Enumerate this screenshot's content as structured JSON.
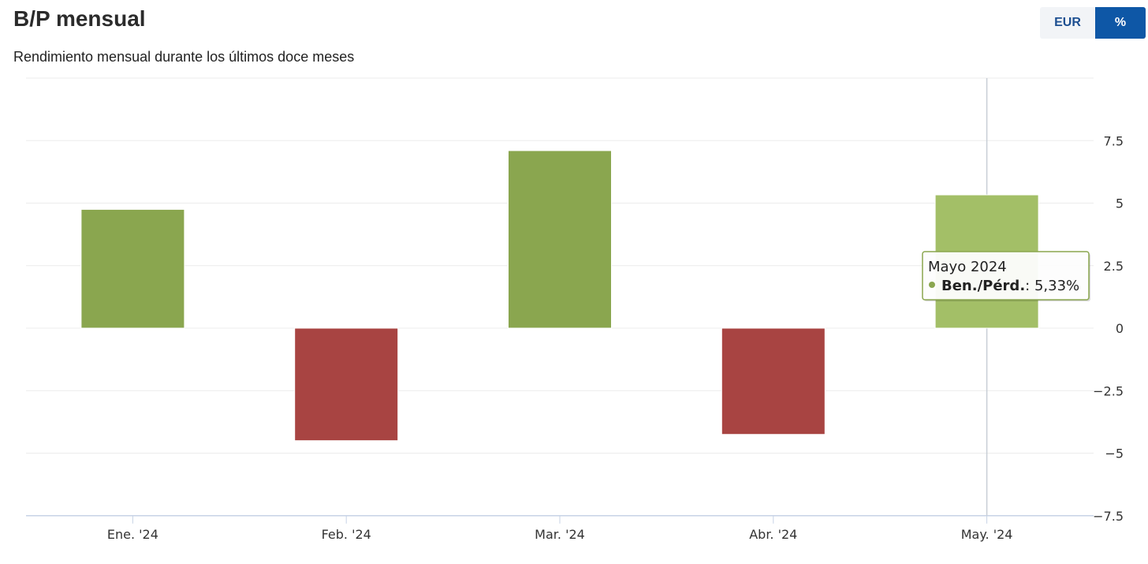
{
  "header": {
    "title": "B/P mensual",
    "subtitle": "Rendimiento mensual durante los últimos doce meses"
  },
  "toggle": {
    "eur_label": "EUR",
    "pct_label": "%",
    "selected": "%"
  },
  "colors": {
    "positive": "#8aa64f",
    "positive_highlight": "#a3bf67",
    "negative": "#a84442",
    "accent": "#0e57a6"
  },
  "tooltip": {
    "title": "Mayo 2024",
    "series_label": "Ben./Pérd.",
    "value_text": ": 5,33%"
  },
  "chart_data": {
    "type": "bar",
    "categories": [
      "Ene. '24",
      "Feb. '24",
      "Mar. '24",
      "Abr. '24",
      "May. '24"
    ],
    "series": [
      {
        "name": "Ben./Pérd.",
        "values": [
          4.75,
          -4.5,
          7.1,
          -4.25,
          5.33
        ]
      }
    ],
    "ylim": [
      -7.5,
      10
    ],
    "yticks": [
      -7.5,
      -5,
      -2.5,
      0,
      2.5,
      5,
      7.5
    ],
    "ytick_labels": [
      "−7.5",
      "−5",
      "−2.5",
      "0",
      "2.5",
      "5",
      "7.5"
    ],
    "highlighted_index": 4,
    "grid": true,
    "y_axis_side": "right"
  }
}
